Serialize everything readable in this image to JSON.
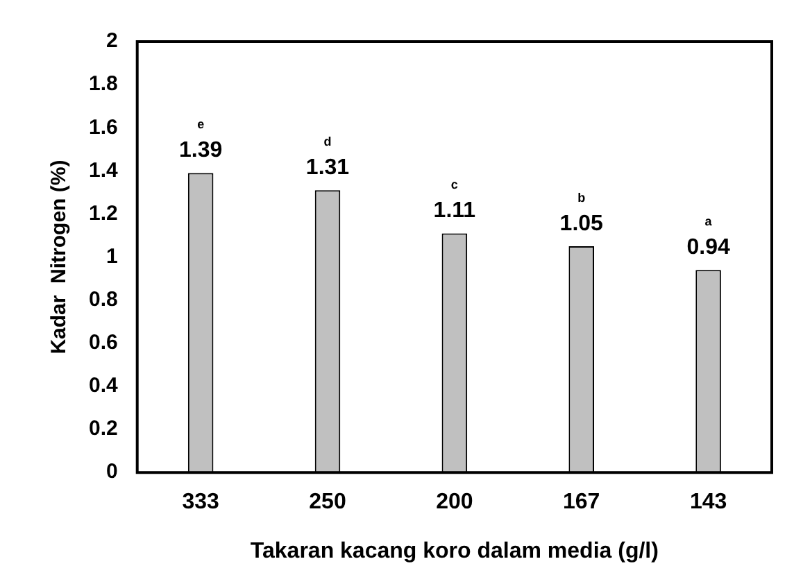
{
  "chart_data": {
    "type": "bar",
    "xlabel": "Takaran kacang koro dalam media (g/l)",
    "ylabel": "Kadar  Nitrogen (%)",
    "categories": [
      "333",
      "250",
      "200",
      "167",
      "143"
    ],
    "values": [
      1.39,
      1.31,
      1.11,
      1.05,
      0.94
    ],
    "color": "#c0c0c0",
    "ylim": [
      0,
      2
    ],
    "yticks": [
      0,
      0.2,
      0.4,
      0.6,
      0.8,
      1,
      1.2,
      1.4,
      1.6,
      1.8,
      2
    ],
    "grid": false,
    "legend": false,
    "data_labels": true,
    "annotations": [
      "e",
      "d",
      "c",
      "b",
      "a"
    ]
  }
}
